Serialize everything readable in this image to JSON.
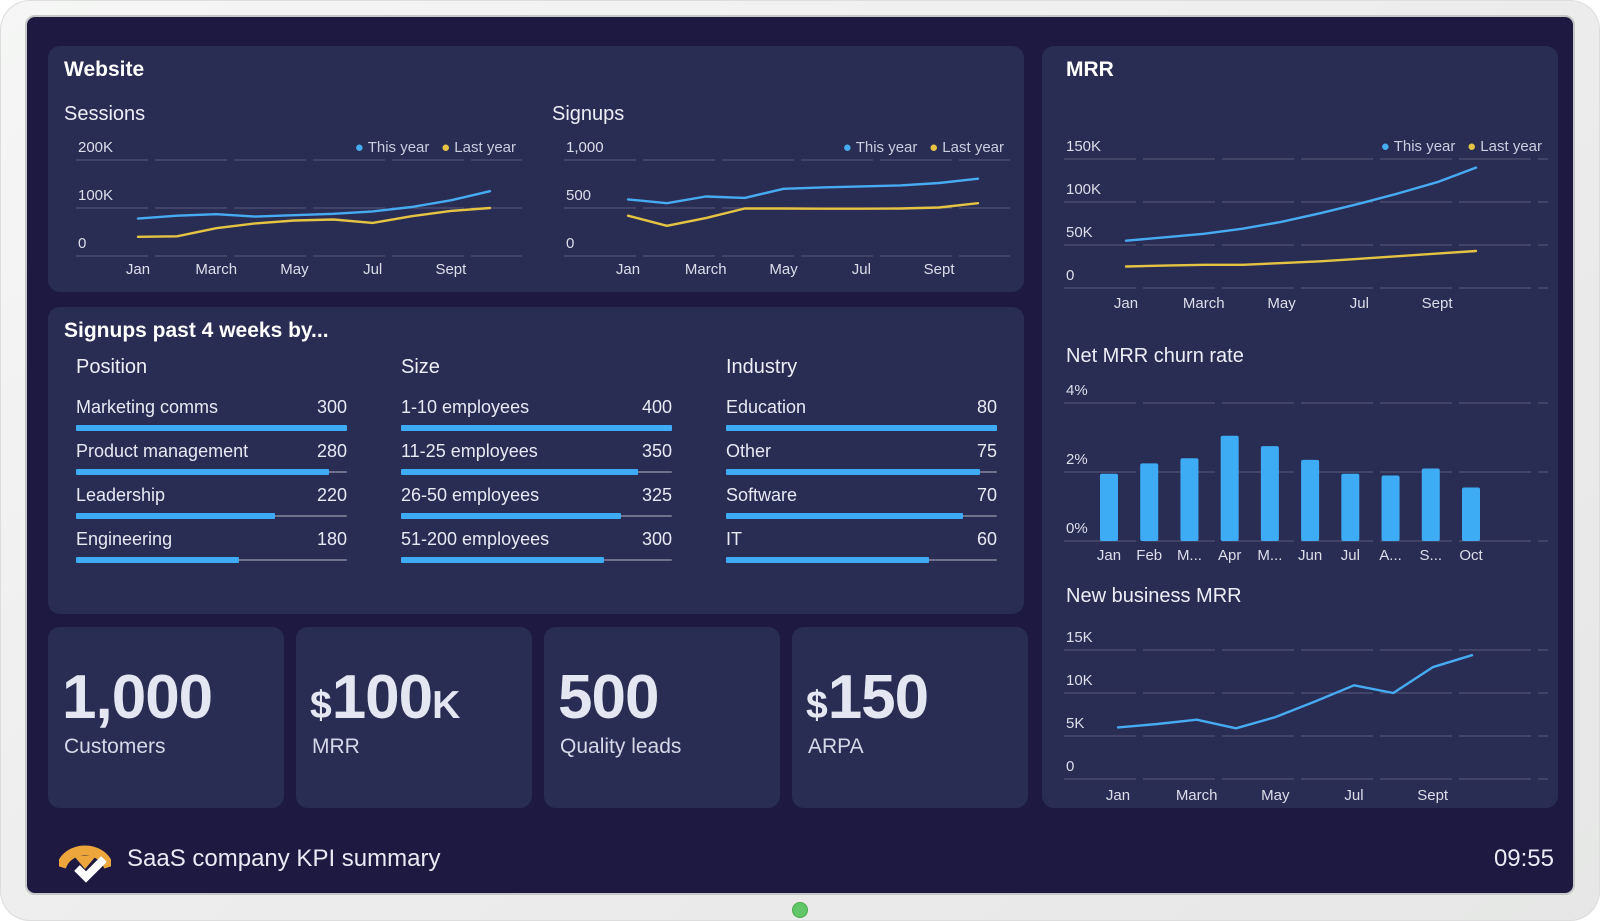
{
  "device": {
    "type": "tv-dashboard-frame",
    "led_color": "#63C76A"
  },
  "colors": {
    "screen_bg": "#1D1940",
    "panel_bg": "#2A2D53",
    "accent_blue": "#47ABF2",
    "accent_yellow": "#E5C443",
    "bar_blue": "#3EACF5",
    "logo_orange": "#ECA63C",
    "text_light": "#E7E9F3"
  },
  "website_panel": {
    "title": "Website"
  },
  "mrr_panel": {
    "title": "MRR"
  },
  "signups_panel": {
    "title": "Signups past 4 weeks by...",
    "groups": [
      {
        "title": "Position",
        "items": [
          {
            "label": "Marketing comms",
            "value": 300
          },
          {
            "label": "Product management",
            "value": 280
          },
          {
            "label": "Leadership",
            "value": 220
          },
          {
            "label": "Engineering",
            "value": 180
          }
        ]
      },
      {
        "title": "Size",
        "items": [
          {
            "label": "1-10 employees",
            "value": 400
          },
          {
            "label": "11-25 employees",
            "value": 350
          },
          {
            "label": "26-50 employees",
            "value": 325
          },
          {
            "label": "51-200 employees",
            "value": 300
          }
        ]
      },
      {
        "title": "Industry",
        "items": [
          {
            "label": "Education",
            "value": 80
          },
          {
            "label": "Other",
            "value": 75
          },
          {
            "label": "Software",
            "value": 70
          },
          {
            "label": "IT",
            "value": 60
          }
        ]
      }
    ]
  },
  "cards": [
    {
      "prefix": "",
      "value": "1,000",
      "suffix": "",
      "label": "Customers"
    },
    {
      "prefix": "$",
      "value": "100",
      "suffix": "K",
      "label": "MRR"
    },
    {
      "prefix": "",
      "value": "500",
      "suffix": "",
      "label": "Quality leads"
    },
    {
      "prefix": "$",
      "value": "150",
      "suffix": "",
      "label": "ARPA"
    }
  ],
  "footer": {
    "title": "SaaS company KPI summary",
    "clock": "09:55"
  },
  "chart_data": [
    {
      "id": "sessions",
      "panel": "Website",
      "title": "Sessions",
      "type": "line",
      "ylim": [
        0,
        200
      ],
      "y_unit": "K",
      "yticks": [
        {
          "value": 200,
          "label": "200K"
        },
        {
          "value": 100,
          "label": "100K"
        },
        {
          "value": 0,
          "label": "0"
        }
      ],
      "xticks": [
        {
          "index": 0,
          "label": "Jan"
        },
        {
          "index": 2,
          "label": "March"
        },
        {
          "index": 4,
          "label": "May"
        },
        {
          "index": 6,
          "label": "Jul"
        },
        {
          "index": 8,
          "label": "Sept"
        }
      ],
      "legend_position": "top-right",
      "grid": "dashed-horizontal",
      "series": [
        {
          "name": "This year",
          "color": "#47ABF2",
          "values": [
            78,
            84,
            87,
            82,
            85,
            88,
            93,
            102,
            116,
            135
          ]
        },
        {
          "name": "Last year",
          "color": "#E5C443",
          "values": [
            40,
            41,
            58,
            68,
            74,
            76,
            69,
            83,
            94,
            100
          ]
        }
      ]
    },
    {
      "id": "signups",
      "panel": "Website",
      "title": "Signups",
      "type": "line",
      "ylim": [
        0,
        1000
      ],
      "yticks": [
        {
          "value": 1000,
          "label": "1,000"
        },
        {
          "value": 500,
          "label": "500"
        },
        {
          "value": 0,
          "label": "0"
        }
      ],
      "xticks": [
        {
          "index": 0,
          "label": "Jan"
        },
        {
          "index": 2,
          "label": "March"
        },
        {
          "index": 4,
          "label": "May"
        },
        {
          "index": 6,
          "label": "Jul"
        },
        {
          "index": 8,
          "label": "Sept"
        }
      ],
      "legend_position": "top-right",
      "grid": "dashed-horizontal",
      "series": [
        {
          "name": "This year",
          "color": "#47ABF2",
          "values": [
            590,
            550,
            620,
            605,
            700,
            715,
            725,
            735,
            760,
            805
          ]
        },
        {
          "name": "Last year",
          "color": "#E5C443",
          "values": [
            420,
            315,
            395,
            495,
            495,
            493,
            493,
            495,
            505,
            550
          ]
        }
      ]
    },
    {
      "id": "mrr",
      "panel": "MRR",
      "title": "MRR",
      "type": "line",
      "ylim": [
        0,
        150
      ],
      "y_unit": "K",
      "yticks": [
        {
          "value": 150,
          "label": "150K"
        },
        {
          "value": 100,
          "label": "100K"
        },
        {
          "value": 50,
          "label": "50K"
        },
        {
          "value": 0,
          "label": "0"
        }
      ],
      "xticks": [
        {
          "index": 0,
          "label": "Jan"
        },
        {
          "index": 2,
          "label": "March"
        },
        {
          "index": 4,
          "label": "May"
        },
        {
          "index": 6,
          "label": "Jul"
        },
        {
          "index": 8,
          "label": "Sept"
        }
      ],
      "legend_position": "top-right",
      "grid": "dashed-horizontal",
      "series": [
        {
          "name": "This year",
          "color": "#47ABF2",
          "values": [
            55,
            59,
            63,
            69,
            77,
            87,
            98,
            110,
            123,
            140
          ]
        },
        {
          "name": "Last year",
          "color": "#E5C443",
          "values": [
            25,
            26,
            27,
            27,
            29,
            31,
            34,
            37,
            40,
            43
          ]
        }
      ]
    },
    {
      "id": "churn",
      "panel": "MRR",
      "title": "Net MRR churn rate",
      "type": "bar",
      "ylim": [
        0,
        4
      ],
      "y_unit": "%",
      "yticks": [
        {
          "value": 4,
          "label": "4%"
        },
        {
          "value": 2,
          "label": "2%"
        },
        {
          "value": 0,
          "label": "0%"
        }
      ],
      "categories": [
        "Jan",
        "Feb",
        "M...",
        "Apr",
        "M...",
        "Jun",
        "Jul",
        "A...",
        "S...",
        "Oct"
      ],
      "values": [
        1.95,
        2.25,
        2.4,
        3.05,
        2.75,
        2.35,
        1.95,
        1.9,
        2.1,
        1.55
      ],
      "bar_color": "#3EACF5",
      "grid": "dashed-horizontal"
    },
    {
      "id": "newbiz",
      "panel": "MRR",
      "title": "New business MRR",
      "type": "line",
      "ylim": [
        0,
        15
      ],
      "y_unit": "K",
      "yticks": [
        {
          "value": 15,
          "label": "15K"
        },
        {
          "value": 10,
          "label": "10K"
        },
        {
          "value": 5,
          "label": "5K"
        },
        {
          "value": 0,
          "label": "0"
        }
      ],
      "xticks": [
        {
          "index": 0,
          "label": "Jan"
        },
        {
          "index": 2,
          "label": "March"
        },
        {
          "index": 4,
          "label": "May"
        },
        {
          "index": 6,
          "label": "Jul"
        },
        {
          "index": 8,
          "label": "Sept"
        }
      ],
      "grid": "dashed-horizontal",
      "series": [
        {
          "name": "This year",
          "color": "#47ABF2",
          "values": [
            6.0,
            6.4,
            6.9,
            5.9,
            7.2,
            9.0,
            10.9,
            10.0,
            13.0,
            14.4
          ]
        }
      ]
    }
  ]
}
